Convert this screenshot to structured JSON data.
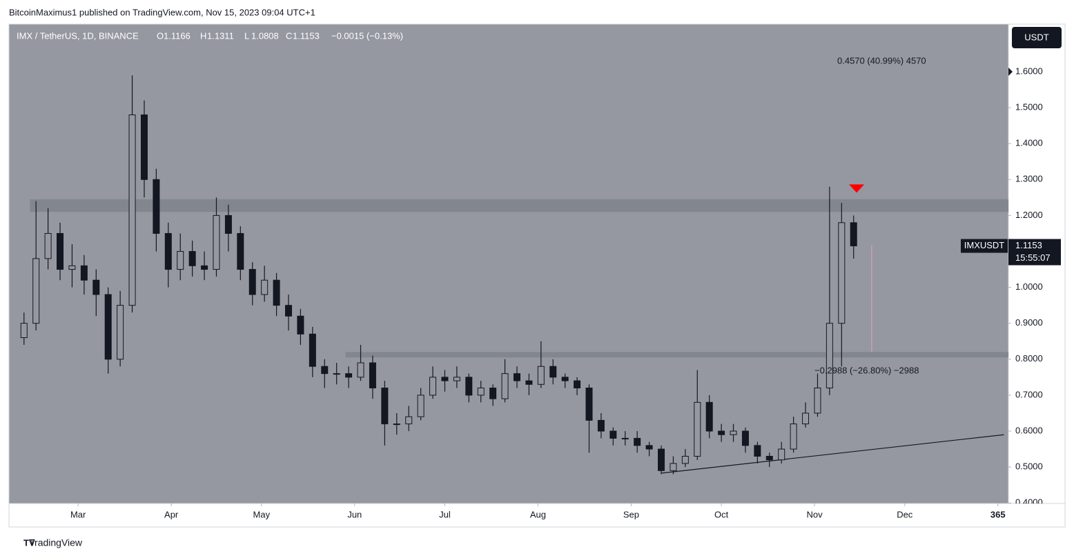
{
  "header": {
    "publisher": "BitcoinMaximus1 published on TradingView.com, Nov 15, 2023 09:04 UTC+1"
  },
  "footer": {
    "brand": "TradingView"
  },
  "chart_data": {
    "type": "candlestick",
    "symbol": "IMX / TetherUS, 1D, BINANCE",
    "ohlc_letters": [
      "O",
      "H",
      "L",
      "C"
    ],
    "ohlc_values": [
      1.1166,
      1.1311,
      1.0808,
      1.1153
    ],
    "change": "−0.0015 (−0.13%)",
    "currency": "USDT",
    "ticker": "IMXUSDT",
    "last_price": 1.1153,
    "countdown": "15:55:07",
    "annotations": [
      "0.4570 (40.99%) 4570",
      "−0.2988 (−26.80%) −2988"
    ],
    "color": "#131722",
    "up_color": "#9598a1",
    "background": "#9598a1",
    "band_color": "#7f828b",
    "marker_color": "#ff0000",
    "xlim": [
      36,
      368.5
    ],
    "xticks": [
      {
        "value": 59,
        "label": "Mar"
      },
      {
        "value": 90,
        "label": "Apr"
      },
      {
        "value": 120,
        "label": "May"
      },
      {
        "value": 151,
        "label": "Jun"
      },
      {
        "value": 181,
        "label": "Jul"
      },
      {
        "value": 212,
        "label": "Aug"
      },
      {
        "value": 243,
        "label": "Sep"
      },
      {
        "value": 273,
        "label": "Oct"
      },
      {
        "value": 304,
        "label": "Nov"
      },
      {
        "value": 334,
        "label": "Dec"
      },
      365
    ],
    "ylim": [
      0.3985,
      1.7324
    ],
    "yticks": [
      {
        "value": 0.4,
        "label": "0.4000"
      },
      {
        "value": 0.5,
        "label": "0.5000"
      },
      {
        "value": 0.6,
        "label": "0.6000"
      },
      {
        "value": 0.7,
        "label": "0.7000"
      },
      {
        "value": 0.8,
        "label": "0.8000"
      },
      {
        "value": 0.9,
        "label": "0.9000"
      },
      {
        "value": 1.0,
        "label": "1.0000"
      },
      {
        "value": 1.1,
        "label": "1.1000"
      },
      {
        "value": 1.2,
        "label": "1.2000"
      },
      {
        "value": 1.3,
        "label": "1.3000"
      },
      {
        "value": 1.4,
        "label": "1.4000"
      },
      {
        "value": 1.5,
        "label": "1.5000"
      },
      {
        "value": 1.6,
        "label": "1.6000"
      }
    ],
    "x": [
      41,
      45,
      49,
      53,
      57,
      61,
      65,
      69,
      73,
      77,
      81,
      85,
      89,
      93,
      97,
      101,
      105,
      109,
      113,
      117,
      121,
      125,
      129,
      133,
      137,
      141,
      145,
      149,
      153,
      157,
      161,
      165,
      169,
      173,
      177,
      181,
      185,
      189,
      193,
      197,
      201,
      205,
      209,
      213,
      217,
      221,
      225,
      229,
      233,
      237,
      241,
      245,
      249,
      253,
      257,
      261,
      265,
      269,
      273,
      277,
      281,
      285,
      289,
      293,
      297,
      301,
      305,
      309,
      313,
      317
    ],
    "open": [
      0.86,
      0.9,
      1.08,
      1.15,
      1.05,
      1.06,
      1.02,
      0.98,
      0.8,
      0.95,
      1.48,
      1.3,
      1.15,
      1.05,
      1.1,
      1.06,
      1.05,
      1.2,
      1.15,
      1.05,
      0.98,
      1.02,
      0.95,
      0.92,
      0.87,
      0.78,
      0.76,
      0.76,
      0.75,
      0.79,
      0.72,
      0.62,
      0.62,
      0.64,
      0.7,
      0.75,
      0.74,
      0.75,
      0.7,
      0.72,
      0.69,
      0.76,
      0.74,
      0.73,
      0.78,
      0.75,
      0.74,
      0.72,
      0.63,
      0.6,
      0.58,
      0.58,
      0.56,
      0.55,
      0.49,
      0.51,
      0.53,
      0.68,
      0.6,
      0.59,
      0.6,
      0.56,
      0.53,
      0.52,
      0.55,
      0.62,
      0.65,
      0.72,
      0.9,
      1.18
    ],
    "high": [
      0.93,
      1.24,
      1.22,
      1.18,
      1.12,
      1.09,
      1.05,
      1.0,
      0.99,
      1.59,
      1.52,
      1.33,
      1.18,
      1.15,
      1.13,
      1.1,
      1.25,
      1.23,
      1.17,
      1.07,
      1.06,
      1.04,
      0.98,
      0.94,
      0.89,
      0.8,
      0.79,
      0.78,
      0.84,
      0.81,
      0.74,
      0.65,
      0.67,
      0.72,
      0.78,
      0.77,
      0.78,
      0.76,
      0.74,
      0.73,
      0.8,
      0.78,
      0.76,
      0.85,
      0.8,
      0.76,
      0.75,
      0.73,
      0.65,
      0.61,
      0.6,
      0.6,
      0.57,
      0.56,
      0.53,
      0.55,
      0.77,
      0.7,
      0.62,
      0.62,
      0.61,
      0.57,
      0.54,
      0.57,
      0.64,
      0.68,
      0.76,
      1.28,
      1.235,
      1.2
    ],
    "low": [
      0.84,
      0.88,
      1.05,
      1.02,
      1.0,
      0.98,
      0.92,
      0.76,
      0.78,
      0.93,
      1.25,
      1.1,
      1.0,
      1.02,
      1.03,
      1.02,
      1.03,
      1.1,
      1.02,
      0.95,
      0.96,
      0.92,
      0.88,
      0.84,
      0.75,
      0.72,
      0.73,
      0.72,
      0.74,
      0.69,
      0.56,
      0.59,
      0.6,
      0.63,
      0.69,
      0.71,
      0.72,
      0.68,
      0.68,
      0.67,
      0.68,
      0.72,
      0.7,
      0.72,
      0.73,
      0.72,
      0.7,
      0.54,
      0.58,
      0.56,
      0.56,
      0.54,
      0.53,
      0.48,
      0.48,
      0.5,
      0.52,
      0.58,
      0.57,
      0.57,
      0.54,
      0.51,
      0.5,
      0.51,
      0.54,
      0.61,
      0.64,
      0.7,
      0.78,
      1.08
    ],
    "close": [
      0.9,
      1.08,
      1.15,
      1.05,
      1.06,
      1.02,
      0.98,
      0.8,
      0.95,
      1.48,
      1.3,
      1.15,
      1.05,
      1.1,
      1.06,
      1.05,
      1.2,
      1.15,
      1.05,
      0.98,
      1.02,
      0.95,
      0.92,
      0.87,
      0.78,
      0.76,
      0.76,
      0.75,
      0.79,
      0.72,
      0.62,
      0.62,
      0.64,
      0.7,
      0.75,
      0.74,
      0.75,
      0.7,
      0.72,
      0.69,
      0.76,
      0.74,
      0.73,
      0.78,
      0.75,
      0.74,
      0.72,
      0.63,
      0.6,
      0.58,
      0.58,
      0.56,
      0.55,
      0.49,
      0.51,
      0.53,
      0.68,
      0.6,
      0.59,
      0.6,
      0.56,
      0.53,
      0.52,
      0.55,
      0.62,
      0.65,
      0.72,
      0.9,
      1.18,
      1.1153
    ],
    "bands": [
      {
        "x": [
          43,
          368.5
        ],
        "y": [
          1.21,
          1.245
        ]
      },
      {
        "x": [
          148,
          368.5
        ],
        "y": [
          0.805,
          0.82
        ]
      }
    ],
    "trendline": {
      "x": [
        253,
        367
      ],
      "y": [
        0.483,
        0.59
      ]
    },
    "marker": {
      "x": 318,
      "y": 1.275
    },
    "measure": {
      "x": 323,
      "y": [
        0.82,
        1.118
      ]
    }
  }
}
